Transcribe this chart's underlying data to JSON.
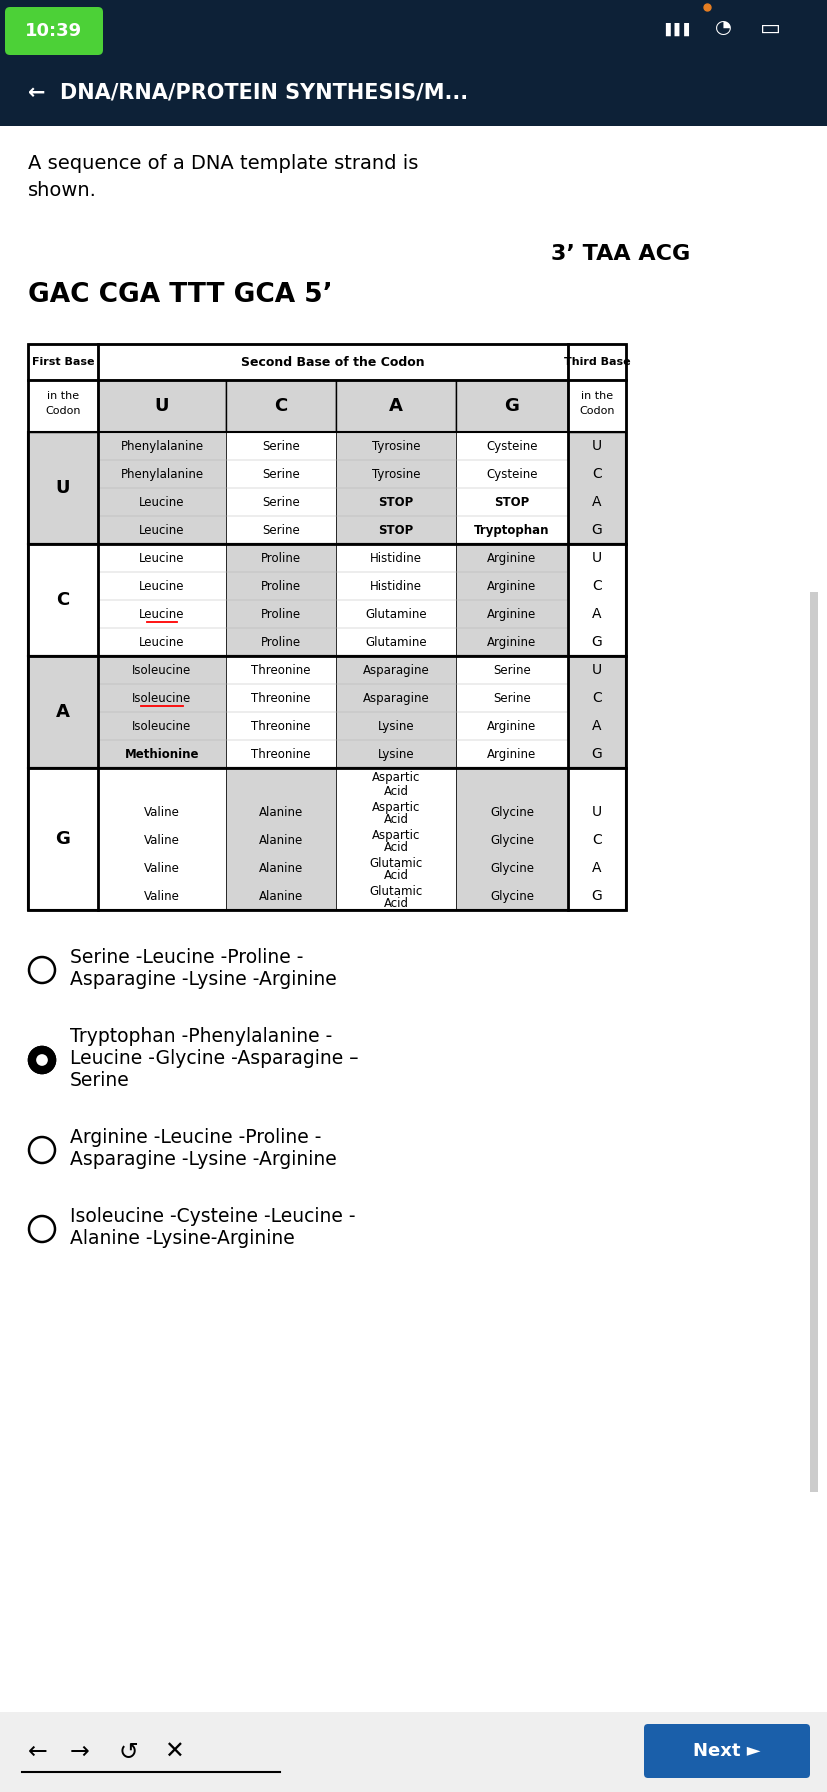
{
  "status_bar_bg": "#0d2137",
  "status_bar_time": "10:39",
  "header_bg": "#0d2137",
  "header_text": "←  DNA/RNA/PROTEIN SYNTHESIS/M...",
  "body_bg": "#ffffff",
  "question_text": "A sequence of a DNA template strand is\nshown.",
  "dna_line1": "3’ TAA ACG",
  "dna_line2": "GAC CGA TTT GCA 5’",
  "table_data": {
    "U": {
      "U": [
        "Phenylalanine",
        "Phenylalanine",
        "Leucine",
        "Leucine"
      ],
      "C": [
        "Serine",
        "Serine",
        "Serine",
        "Serine"
      ],
      "A": [
        "Tyrosine",
        "Tyrosine",
        "STOP",
        "STOP"
      ],
      "G": [
        "Cysteine",
        "Cysteine",
        "STOP",
        "Tryptophan"
      ],
      "third": [
        "U",
        "C",
        "A",
        "G"
      ]
    },
    "C": {
      "U": [
        "Leucine",
        "Leucine",
        "Leucine",
        "Leucine"
      ],
      "C": [
        "Proline",
        "Proline",
        "Proline",
        "Proline"
      ],
      "A": [
        "Histidine",
        "Histidine",
        "Glutamine",
        "Glutamine"
      ],
      "G": [
        "Arginine",
        "Arginine",
        "Arginine",
        "Arginine"
      ],
      "third": [
        "U",
        "C",
        "A",
        "G"
      ]
    },
    "A": {
      "U": [
        "Isoleucine",
        "Isoleucine",
        "Isoleucine",
        "Methionine"
      ],
      "C": [
        "Threonine",
        "Threonine",
        "Threonine",
        "Threonine"
      ],
      "A": [
        "Asparagine",
        "Asparagine",
        "Lysine",
        "Lysine"
      ],
      "G": [
        "Serine",
        "Serine",
        "Arginine",
        "Arginine"
      ],
      "third": [
        "U",
        "C",
        "A",
        "G"
      ]
    },
    "G": {
      "U": [
        "Valine",
        "Valine",
        "Valine",
        "Valine"
      ],
      "C": [
        "Alanine",
        "Alanine",
        "Alanine",
        "Alanine"
      ],
      "A": [
        "Aspartic\nAcid",
        "Aspartic\nAcid",
        "Glutamic\nAcid",
        "Glutamic\nAcid"
      ],
      "G": [
        "Glycine",
        "Glycine",
        "Glycine",
        "Glycine"
      ],
      "third": [
        "U",
        "C",
        "A",
        "G"
      ]
    }
  },
  "underline_cells": [
    [
      "C",
      "U",
      2
    ],
    [
      "A",
      "U",
      1
    ]
  ],
  "bold_cells": [
    [
      "A",
      "U",
      3
    ],
    [
      "U",
      "A",
      2
    ],
    [
      "U",
      "A",
      3
    ],
    [
      "U",
      "G",
      2
    ],
    [
      "U",
      "G",
      3
    ]
  ],
  "answers": [
    {
      "circle": false,
      "text": "Serine -Leucine -Proline -\nAsparagine -Lysine -Arginine"
    },
    {
      "circle": true,
      "text": "Tryptophan -Phenylalanine -\nLeucine -Glycine -Asparagine –\nSerine"
    },
    {
      "circle": false,
      "text": "Arginine -Leucine -Proline -\nAsparagine -Lysine -Arginine"
    },
    {
      "circle": false,
      "text": "Isoleucine -Cysteine -Leucine -\nAlanine -Lysine-Arginine"
    }
  ],
  "next_button_text": "Next ►",
  "next_button_color": "#1a5faa"
}
